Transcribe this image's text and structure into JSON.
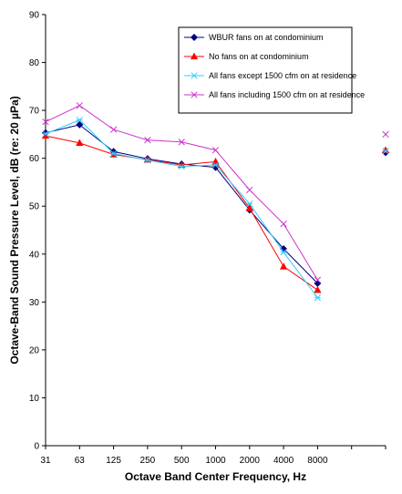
{
  "chart_data": {
    "type": "line",
    "title": "",
    "xlabel": "Octave Band Center Frequency, Hz",
    "ylabel": "Octave-Band Sound Pressure Level, dB (re: 20 µPa)",
    "categories": [
      "31",
      "63",
      "125",
      "250",
      "500",
      "1000",
      "2000",
      "4000",
      "8000",
      "",
      ""
    ],
    "ylim": [
      0,
      90
    ],
    "yticks": [
      0,
      10,
      20,
      30,
      40,
      50,
      60,
      70,
      80,
      90
    ],
    "grid": false,
    "legend_position": "top-right",
    "series": [
      {
        "name": "WBUR fans on at condominium",
        "color": "#000080",
        "marker": "diamond",
        "values": [
          65.3,
          67.0,
          61.4,
          59.9,
          58.8,
          58.1,
          49.2,
          41.1,
          33.9,
          null,
          61.2
        ]
      },
      {
        "name": "No fans on at condominium",
        "color": "#ff0000",
        "marker": "triangle",
        "values": [
          64.7,
          63.2,
          60.8,
          59.7,
          58.6,
          59.3,
          49.6,
          37.4,
          32.5,
          null,
          61.7
        ]
      },
      {
        "name": "All fans except 1500 cfm on at residence",
        "color": "#33ccff",
        "marker": "star",
        "values": [
          65.1,
          68.0,
          61.0,
          59.6,
          58.3,
          58.6,
          50.5,
          40.4,
          30.9,
          null,
          61.5
        ]
      },
      {
        "name": "All fans including 1500 cfm on at residence",
        "color": "#cc33cc",
        "marker": "cross",
        "values": [
          67.6,
          71.0,
          66.0,
          63.8,
          63.4,
          61.7,
          53.4,
          46.3,
          34.6,
          null,
          65.0
        ]
      }
    ]
  }
}
